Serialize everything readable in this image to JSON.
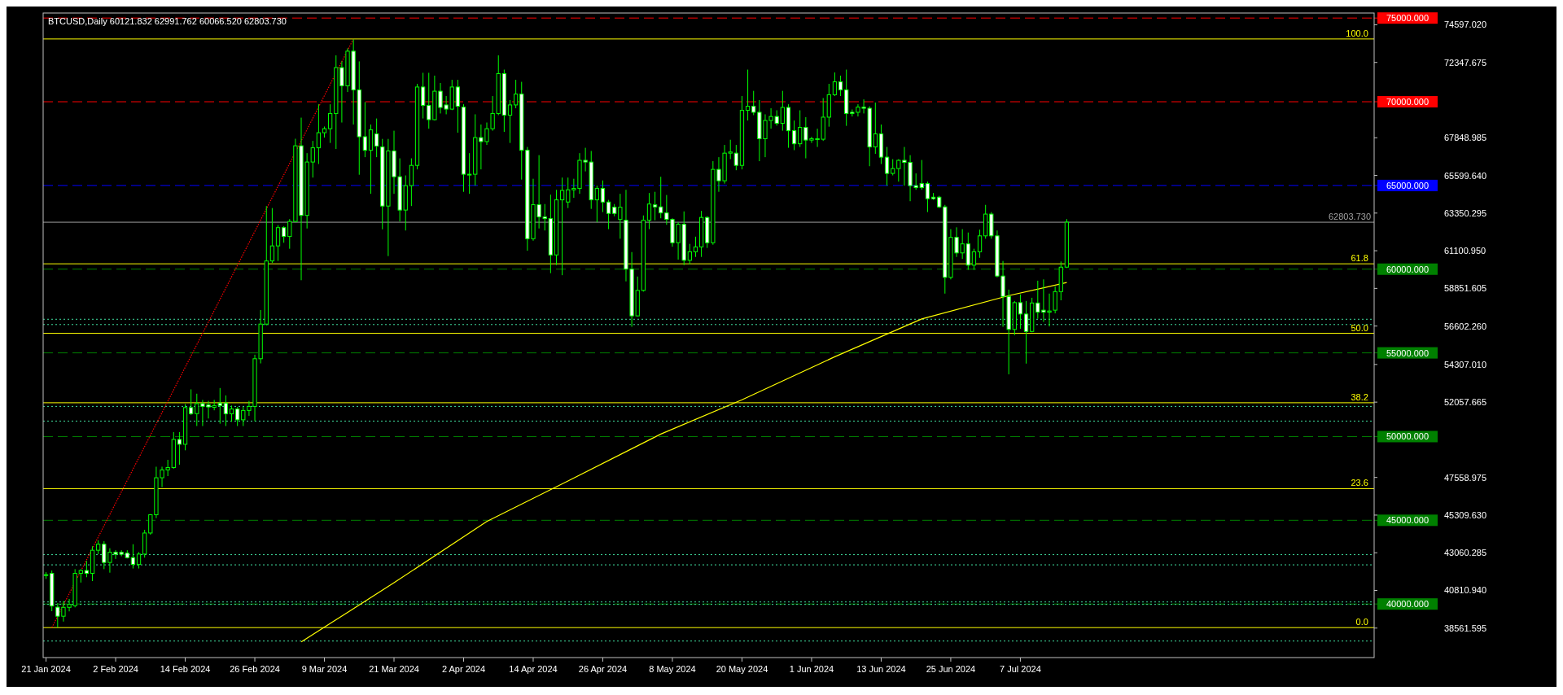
{
  "chart_data": {
    "type": "candlestick",
    "title": "BTCUSD,Daily  60121.832 62991.762 60066.520 62803.730",
    "xlim": [
      "2024-01-20T12:00",
      "2024-09-06"
    ],
    "xticks": [
      {
        "value": "2024-01-21",
        "label": "21 Jan 2024"
      },
      {
        "value": "2024-02-02",
        "label": "2 Feb 2024"
      },
      {
        "value": "2024-02-14",
        "label": "14 Feb 2024"
      },
      {
        "value": "2024-02-26",
        "label": "26 Feb 2024"
      },
      {
        "value": "2024-03-09",
        "label": "9 Mar 2024"
      },
      {
        "value": "2024-03-21",
        "label": "21 Mar 2024"
      },
      {
        "value": "2024-04-02",
        "label": "2 Apr 2024"
      },
      {
        "value": "2024-04-14",
        "label": "14 Apr 2024"
      },
      {
        "value": "2024-04-26",
        "label": "26 Apr 2024"
      },
      {
        "value": "2024-05-08",
        "label": "8 May 2024"
      },
      {
        "value": "2024-05-20",
        "label": "20 May 2024"
      },
      {
        "value": "2024-06-01",
        "label": "1 Jun 2024"
      },
      {
        "value": "2024-06-13",
        "label": "13 Jun 2024"
      },
      {
        "value": "2024-06-25",
        "label": "25 Jun 2024"
      },
      {
        "value": "2024-07-07",
        "label": "7 Jul 2024"
      }
    ],
    "ylim": [
      36800,
      75300
    ],
    "yticks": [
      {
        "value": 38561.595,
        "label": "38561.595"
      },
      {
        "value": 40810.94,
        "label": "40810.940"
      },
      {
        "value": 43060.285,
        "label": "43060.285"
      },
      {
        "value": 45309.63,
        "label": "45309.630"
      },
      {
        "value": 47558.975,
        "label": "47558.975"
      },
      {
        "value": 52057.665,
        "label": "52057.665"
      },
      {
        "value": 54307.01,
        "label": "54307.010"
      },
      {
        "value": 56602.26,
        "label": "56602.260"
      },
      {
        "value": 58851.605,
        "label": "58851.605"
      },
      {
        "value": 61100.95,
        "label": "61100.950"
      },
      {
        "value": 63350.295,
        "label": "63350.295"
      },
      {
        "value": 65599.64,
        "label": "65599.640"
      },
      {
        "value": 67848.985,
        "label": "67848.985"
      },
      {
        "value": 72347.675,
        "label": "72347.675"
      },
      {
        "value": 74597.02,
        "label": "74597.020"
      }
    ],
    "ref_lines": [
      {
        "axis": "y",
        "value": 75000,
        "label": "75000.000",
        "color": "#ff0000",
        "line_style": "dashed"
      },
      {
        "axis": "y",
        "value": 70000,
        "label": "70000.000",
        "color": "#ff0000",
        "line_style": "dashed"
      },
      {
        "axis": "y",
        "value": 65000,
        "label": "65000.000",
        "color": "#0000ff",
        "line_style": "dashed"
      },
      {
        "axis": "y",
        "value": 60000,
        "label": "60000.000",
        "color": "#008000",
        "line_style": "dashed"
      },
      {
        "axis": "y",
        "value": 55000,
        "label": "55000.000",
        "color": "#008000",
        "line_style": "dashed"
      },
      {
        "axis": "y",
        "value": 50000,
        "label": "50000.000",
        "color": "#008000",
        "line_style": "dashed"
      },
      {
        "axis": "y",
        "value": 45000,
        "label": "45000.000",
        "color": "#008000",
        "line_style": "dashed"
      },
      {
        "axis": "y",
        "value": 40000,
        "label": "40000.000",
        "color": "#008000",
        "line_style": "dashed"
      },
      {
        "axis": "y",
        "value": 62803.73,
        "label": "62803.730",
        "color": "#a0a0a0",
        "line_style": "solid"
      },
      {
        "axis": "y",
        "value": 73750,
        "color": "#ffff00",
        "line_style": "solid"
      },
      {
        "axis": "y",
        "value": 60320,
        "color": "#ffff00",
        "line_style": "solid"
      },
      {
        "axis": "y",
        "value": 56170,
        "color": "#ffff00",
        "line_style": "solid"
      },
      {
        "axis": "y",
        "value": 52020,
        "color": "#ffff00",
        "line_style": "solid"
      },
      {
        "axis": "y",
        "value": 46890,
        "color": "#ffff00",
        "line_style": "solid"
      },
      {
        "axis": "y",
        "value": 38590,
        "color": "#ffff00",
        "line_style": "solid"
      },
      {
        "axis": "y",
        "value": 57008,
        "color": "#40e0a0",
        "line_style": "dotted"
      },
      {
        "axis": "y",
        "value": 56692,
        "color": "#40e0a0",
        "line_style": "dotted"
      },
      {
        "axis": "y",
        "value": 51802,
        "color": "#40e0a0",
        "line_style": "dotted"
      },
      {
        "axis": "y",
        "value": 50926,
        "color": "#40e0a0",
        "line_style": "dotted"
      },
      {
        "axis": "y",
        "value": 42946,
        "color": "#40e0a0",
        "line_style": "dotted"
      },
      {
        "axis": "y",
        "value": 42338,
        "color": "#40e0a0",
        "line_style": "dotted"
      },
      {
        "axis": "y",
        "value": 40122,
        "color": "#40e0a0",
        "line_style": "dotted"
      },
      {
        "axis": "y",
        "value": 39976,
        "color": "#40e0a0",
        "line_style": "dotted"
      },
      {
        "axis": "y",
        "value": 37787,
        "color": "#40e0a0",
        "line_style": "dotted"
      }
    ],
    "annotations": [
      {
        "text": "100.0",
        "x": "2024-09-05",
        "y": 73750
      },
      {
        "text": "61.8",
        "x": "2024-09-05",
        "y": 60320
      },
      {
        "text": "50.0",
        "x": "2024-09-05",
        "y": 56170
      },
      {
        "text": "38.2",
        "x": "2024-09-05",
        "y": 52020
      },
      {
        "text": "23.6",
        "x": "2024-09-05",
        "y": 46890
      },
      {
        "text": "0.0",
        "x": "2024-09-05",
        "y": 38590
      }
    ],
    "series": [
      {
        "type": "line",
        "color": "#ff0000",
        "line_style": "dotted",
        "x": [
          "2024-01-22",
          "2024-03-14"
        ],
        "values": [
          38590,
          73750
        ]
      },
      {
        "type": "line",
        "color": "#ffff00",
        "line_style": "solid",
        "x": [
          "2024-03-05",
          "2024-03-13",
          "2024-03-21",
          "2024-04-06",
          "2024-04-20",
          "2024-05-06",
          "2024-05-20",
          "2024-06-05",
          "2024-06-20",
          "2024-07-05",
          "2024-07-15"
        ],
        "values": [
          37740,
          39500,
          41270,
          44930,
          47350,
          50150,
          52200,
          54770,
          57030,
          58420,
          59200
        ]
      },
      {
        "color": "#00ff00",
        "x": [
          "2024-01-21",
          "2024-01-22",
          "2024-01-23",
          "2024-01-24",
          "2024-01-25",
          "2024-01-26",
          "2024-01-27",
          "2024-01-28",
          "2024-01-29",
          "2024-01-30",
          "2024-01-31",
          "2024-02-01",
          "2024-02-02",
          "2024-02-03",
          "2024-02-04",
          "2024-02-05",
          "2024-02-06",
          "2024-02-07",
          "2024-02-08",
          "2024-02-09",
          "2024-02-10",
          "2024-02-11",
          "2024-02-12",
          "2024-02-13",
          "2024-02-14",
          "2024-02-15",
          "2024-02-16",
          "2024-02-17",
          "2024-02-18",
          "2024-02-19",
          "2024-02-20",
          "2024-02-21",
          "2024-02-22",
          "2024-02-23",
          "2024-02-24",
          "2024-02-25",
          "2024-02-26",
          "2024-02-27",
          "2024-02-28",
          "2024-02-29",
          "2024-03-01",
          "2024-03-02",
          "2024-03-03",
          "2024-03-04",
          "2024-03-05",
          "2024-03-06",
          "2024-03-07",
          "2024-03-08",
          "2024-03-09",
          "2024-03-10",
          "2024-03-11",
          "2024-03-12",
          "2024-03-13",
          "2024-03-14",
          "2024-03-15",
          "2024-03-16",
          "2024-03-17",
          "2024-03-18",
          "2024-03-19",
          "2024-03-20",
          "2024-03-21",
          "2024-03-22",
          "2024-03-23",
          "2024-03-24",
          "2024-03-25",
          "2024-03-26",
          "2024-03-27",
          "2024-03-28",
          "2024-03-29",
          "2024-03-30",
          "2024-03-31",
          "2024-04-01",
          "2024-04-02",
          "2024-04-03",
          "2024-04-04",
          "2024-04-05",
          "2024-04-06",
          "2024-04-07",
          "2024-04-08",
          "2024-04-09",
          "2024-04-10",
          "2024-04-11",
          "2024-04-12",
          "2024-04-13",
          "2024-04-14",
          "2024-04-15",
          "2024-04-16",
          "2024-04-17",
          "2024-04-18",
          "2024-04-19",
          "2024-04-20",
          "2024-04-21",
          "2024-04-22",
          "2024-04-23",
          "2024-04-24",
          "2024-04-25",
          "2024-04-26",
          "2024-04-27",
          "2024-04-28",
          "2024-04-29",
          "2024-04-30",
          "2024-05-01",
          "2024-05-02",
          "2024-05-03",
          "2024-05-04",
          "2024-05-05",
          "2024-05-06",
          "2024-05-07",
          "2024-05-08",
          "2024-05-09",
          "2024-05-10",
          "2024-05-11",
          "2024-05-12",
          "2024-05-13",
          "2024-05-14",
          "2024-05-15",
          "2024-05-16",
          "2024-05-17",
          "2024-05-18",
          "2024-05-19",
          "2024-05-20",
          "2024-05-21",
          "2024-05-22",
          "2024-05-23",
          "2024-05-24",
          "2024-05-25",
          "2024-05-26",
          "2024-05-27",
          "2024-05-28",
          "2024-05-29",
          "2024-05-30",
          "2024-05-31",
          "2024-06-01",
          "2024-06-02",
          "2024-06-03",
          "2024-06-04",
          "2024-06-05",
          "2024-06-06",
          "2024-06-07",
          "2024-06-08",
          "2024-06-09",
          "2024-06-10",
          "2024-06-11",
          "2024-06-12",
          "2024-06-13",
          "2024-06-14",
          "2024-06-15",
          "2024-06-16",
          "2024-06-17",
          "2024-06-18",
          "2024-06-19",
          "2024-06-20",
          "2024-06-21",
          "2024-06-22",
          "2024-06-23",
          "2024-06-24",
          "2024-06-25",
          "2024-06-26",
          "2024-06-27",
          "2024-06-28",
          "2024-06-29",
          "2024-06-30",
          "2024-07-01",
          "2024-07-02",
          "2024-07-03",
          "2024-07-04",
          "2024-07-05",
          "2024-07-06",
          "2024-07-07",
          "2024-07-08",
          "2024-07-09",
          "2024-07-10",
          "2024-07-11",
          "2024-07-12",
          "2024-07-13",
          "2024-07-14",
          "2024-07-15"
        ],
        "ohlc": [
          [
            41700,
            41900,
            41500,
            41750
          ],
          [
            41830,
            42000,
            39570,
            39880
          ],
          [
            39810,
            40050,
            38600,
            39270
          ],
          [
            39270,
            40170,
            38950,
            39800
          ],
          [
            39800,
            40300,
            39560,
            39980
          ],
          [
            39900,
            42080,
            39800,
            41830
          ],
          [
            41830,
            42080,
            41280,
            42000
          ],
          [
            42000,
            42570,
            41600,
            41830
          ],
          [
            41830,
            43450,
            41370,
            43210
          ],
          [
            43210,
            43800,
            42980,
            43570
          ],
          [
            43570,
            43750,
            42080,
            42480
          ],
          [
            42480,
            43330,
            41870,
            43090
          ],
          [
            43090,
            43210,
            42690,
            42970
          ],
          [
            43090,
            43210,
            42850,
            42970
          ],
          [
            43040,
            43210,
            42720,
            42770
          ],
          [
            42770,
            43570,
            42120,
            42360
          ],
          [
            42360,
            43100,
            42120,
            42980
          ],
          [
            42980,
            44430,
            42770,
            44240
          ],
          [
            44240,
            45370,
            44140,
            45330
          ],
          [
            45330,
            48200,
            45130,
            47540
          ],
          [
            47540,
            48200,
            46980,
            48010
          ],
          [
            48010,
            48610,
            47640,
            48150
          ],
          [
            48150,
            50270,
            48080,
            49830
          ],
          [
            49830,
            50270,
            48320,
            49540
          ],
          [
            49540,
            51940,
            49180,
            51730
          ],
          [
            51730,
            52820,
            51290,
            51370
          ],
          [
            51370,
            52560,
            50630,
            51970
          ],
          [
            51970,
            52190,
            50630,
            51800
          ],
          [
            51900,
            52130,
            51080,
            51770
          ],
          [
            51750,
            52190,
            51570,
            51850
          ],
          [
            52000,
            52900,
            50770,
            51850
          ],
          [
            52000,
            52460,
            50630,
            51360
          ],
          [
            51360,
            51850,
            50880,
            51650
          ],
          [
            51650,
            51770,
            50630,
            51000
          ],
          [
            51000,
            51770,
            50630,
            51560
          ],
          [
            51560,
            52130,
            51240,
            51800
          ],
          [
            51800,
            54890,
            50920,
            54650
          ],
          [
            54650,
            57560,
            54370,
            56720
          ],
          [
            56720,
            63770,
            56640,
            60490
          ],
          [
            60490,
            63650,
            60370,
            61390
          ],
          [
            61390,
            62630,
            60490,
            62480
          ],
          [
            62480,
            62560,
            61580,
            61950
          ],
          [
            61950,
            62990,
            61220,
            62850
          ],
          [
            62850,
            67790,
            62800,
            67370
          ],
          [
            67370,
            69050,
            59340,
            63210
          ],
          [
            63210,
            66930,
            62430,
            66400
          ],
          [
            66400,
            67660,
            65470,
            67250
          ],
          [
            67250,
            69850,
            66280,
            68150
          ],
          [
            68150,
            68520,
            67860,
            68390
          ],
          [
            68390,
            69850,
            67540,
            69300
          ],
          [
            69300,
            72770,
            67180,
            72040
          ],
          [
            72040,
            72410,
            68760,
            70950
          ],
          [
            70950,
            73190,
            70580,
            73020
          ],
          [
            73020,
            73750,
            68640,
            70710
          ],
          [
            70710,
            72410,
            65640,
            67910
          ],
          [
            67910,
            69980,
            66690,
            67100
          ],
          [
            67100,
            68640,
            64500,
            68320
          ],
          [
            68080,
            69000,
            66690,
            67350
          ],
          [
            67300,
            67780,
            62380,
            63770
          ],
          [
            63770,
            67780,
            60780,
            67060
          ],
          [
            67060,
            68270,
            64500,
            65520
          ],
          [
            65520,
            66620,
            62850,
            63530
          ],
          [
            63530,
            65600,
            62310,
            64990
          ],
          [
            64990,
            66620,
            63770,
            66200
          ],
          [
            66200,
            71070,
            65960,
            70880
          ],
          [
            70880,
            71730,
            69000,
            69780
          ],
          [
            69780,
            71730,
            68390,
            68930
          ],
          [
            68930,
            71560,
            68880,
            70630
          ],
          [
            70630,
            71120,
            69300,
            69660
          ],
          [
            69810,
            70340,
            69250,
            69560
          ],
          [
            69560,
            71310,
            69500,
            70880
          ],
          [
            70880,
            71310,
            68150,
            69730
          ],
          [
            69680,
            69850,
            64620,
            65670
          ],
          [
            65650,
            66930,
            64500,
            65670
          ],
          [
            65670,
            69250,
            64990,
            67860
          ],
          [
            67860,
            68640,
            65960,
            67620
          ],
          [
            67620,
            68760,
            67420,
            68390
          ],
          [
            68390,
            70340,
            68270,
            69300
          ],
          [
            69300,
            72770,
            69200,
            71680
          ],
          [
            71680,
            71920,
            68200,
            69200
          ],
          [
            69200,
            70100,
            67540,
            69810
          ],
          [
            69810,
            71310,
            69610,
            70460
          ],
          [
            70460,
            71190,
            65350,
            67100
          ],
          [
            67100,
            67300,
            61100,
            61820
          ],
          [
            61820,
            65400,
            61700,
            63850
          ],
          [
            63850,
            66810,
            62430,
            63120
          ],
          [
            63120,
            63890,
            62310,
            63020
          ],
          [
            63020,
            64450,
            59760,
            60850
          ],
          [
            60850,
            64740,
            60240,
            64140
          ],
          [
            64140,
            65470,
            59640,
            64700
          ],
          [
            64010,
            65470,
            63650,
            64740
          ],
          [
            64740,
            65400,
            64260,
            64820
          ],
          [
            64820,
            66930,
            64500,
            66500
          ],
          [
            66500,
            67250,
            65840,
            66400
          ],
          [
            66400,
            67060,
            63600,
            64140
          ],
          [
            64140,
            64990,
            62800,
            64820
          ],
          [
            64820,
            65300,
            63410,
            64010
          ],
          [
            64010,
            64140,
            62390,
            63330
          ],
          [
            63700,
            63890,
            63160,
            63330
          ],
          [
            62970,
            64500,
            61820,
            63700
          ],
          [
            62920,
            64740,
            59270,
            60000
          ],
          [
            60000,
            61020,
            56560,
            57210
          ],
          [
            57210,
            59560,
            57170,
            58730
          ],
          [
            58730,
            63210,
            58660,
            62920
          ],
          [
            62920,
            64550,
            62390,
            63890
          ],
          [
            63840,
            64620,
            62920,
            63720
          ],
          [
            63720,
            65520,
            63040,
            63360
          ],
          [
            63360,
            64430,
            62650,
            62970
          ],
          [
            62970,
            63040,
            61340,
            61580
          ],
          [
            61580,
            62800,
            60570,
            62680
          ],
          [
            62680,
            63450,
            60240,
            60530
          ],
          [
            60530,
            61510,
            60280,
            61040
          ],
          [
            61040,
            61940,
            60730,
            61330
          ],
          [
            61330,
            63480,
            60730,
            63090
          ],
          [
            63090,
            63160,
            61270,
            61580
          ],
          [
            61580,
            66450,
            61460,
            65960
          ],
          [
            65960,
            66690,
            64620,
            65280
          ],
          [
            65280,
            67420,
            65110,
            66930
          ],
          [
            66930,
            67730,
            66570,
            67000
          ],
          [
            66930,
            67420,
            65910,
            66200
          ],
          [
            66200,
            70340,
            65960,
            69490
          ],
          [
            69490,
            71920,
            68880,
            69730
          ],
          [
            69730,
            70650,
            69200,
            69370
          ],
          [
            69370,
            70100,
            66450,
            67790
          ],
          [
            67790,
            69250,
            66690,
            68880
          ],
          [
            68880,
            69610,
            68390,
            69120
          ],
          [
            69120,
            69490,
            68570,
            68710
          ],
          [
            68710,
            70650,
            68270,
            69660
          ],
          [
            69660,
            69850,
            67250,
            68270
          ],
          [
            68270,
            68880,
            67110,
            67490
          ],
          [
            67490,
            69490,
            67300,
            68470
          ],
          [
            68470,
            69080,
            66620,
            67710
          ],
          [
            67710,
            67910,
            67540,
            67790
          ],
          [
            67790,
            68390,
            67300,
            67760
          ],
          [
            67760,
            70220,
            67660,
            69080
          ],
          [
            69080,
            71070,
            68510,
            70420
          ],
          [
            70420,
            71750,
            70340,
            71190
          ],
          [
            71190,
            71560,
            70340,
            70710
          ],
          [
            70710,
            71920,
            68560,
            69300
          ],
          [
            69370,
            69540,
            69120,
            69300
          ],
          [
            69370,
            69850,
            69120,
            69680
          ],
          [
            69680,
            70140,
            69300,
            69610
          ],
          [
            69610,
            69730,
            66150,
            67300
          ],
          [
            67300,
            69950,
            66890,
            68080
          ],
          [
            68080,
            68640,
            66280,
            66690
          ],
          [
            66690,
            67300,
            64990,
            65720
          ],
          [
            65720,
            66570,
            65600,
            66010
          ],
          [
            66010,
            66570,
            65230,
            66500
          ],
          [
            66500,
            67300,
            64990,
            66380
          ],
          [
            66380,
            66810,
            64060,
            64990
          ],
          [
            64990,
            65720,
            64740,
            64870
          ],
          [
            65110,
            66520,
            64740,
            64870
          ],
          [
            65110,
            65230,
            63410,
            64210
          ],
          [
            64300,
            64550,
            64140,
            64210
          ],
          [
            64300,
            64380,
            63650,
            63720
          ],
          [
            63720,
            63840,
            58540,
            59510
          ],
          [
            59510,
            62390,
            59390,
            61900
          ],
          [
            61900,
            62500,
            60730,
            60970
          ],
          [
            60970,
            62390,
            60610,
            61510
          ],
          [
            61510,
            62190,
            59960,
            60240
          ],
          [
            60240,
            61220,
            59960,
            61040
          ],
          [
            61040,
            62360,
            60680,
            61990
          ],
          [
            61990,
            63840,
            61820,
            63290
          ],
          [
            63290,
            63410,
            61820,
            61990
          ],
          [
            61990,
            62310,
            59510,
            59590
          ],
          [
            59590,
            60490,
            56560,
            58370
          ],
          [
            58370,
            58780,
            53720,
            56400
          ],
          [
            56400,
            58100,
            56060,
            58000
          ],
          [
            58000,
            58490,
            56440,
            57320
          ],
          [
            57320,
            58100,
            54360,
            56280
          ],
          [
            56280,
            58290,
            56230,
            57980
          ],
          [
            57980,
            59310,
            57040,
            57430
          ],
          [
            57550,
            59390,
            56850,
            57430
          ],
          [
            57430,
            58540,
            56580,
            57500
          ],
          [
            57550,
            58970,
            57360,
            58660
          ],
          [
            58660,
            60460,
            58140,
            60120
          ],
          [
            60121.832,
            62991.762,
            60066.52,
            62803.73
          ]
        ]
      }
    ]
  }
}
